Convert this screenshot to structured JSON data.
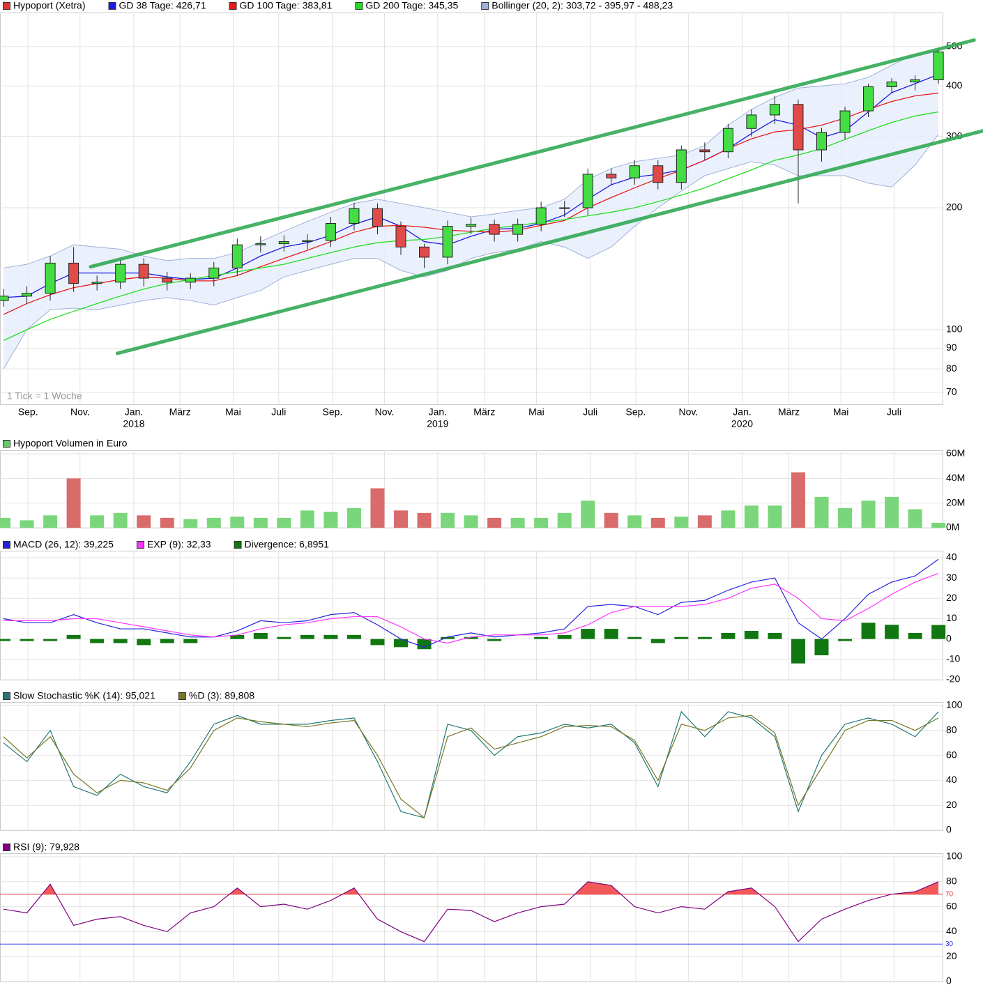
{
  "chart_data": [
    {
      "type": "candlestick",
      "name": "Hypoport (Xetra)",
      "color": "#e33333",
      "up_color": "#44dd44",
      "down_color": "#e24a4a",
      "x": [
        0,
        4,
        8,
        12,
        16,
        20,
        24,
        28,
        32,
        36,
        40,
        44,
        48,
        52,
        56,
        60,
        64,
        68,
        72,
        76,
        80,
        84,
        88,
        92,
        96,
        100,
        104,
        108,
        112,
        116,
        120,
        124,
        128,
        132,
        136,
        140,
        144,
        148,
        152,
        156,
        160
      ],
      "open": [
        118,
        121,
        123,
        146,
        130,
        131,
        145,
        134,
        131,
        134,
        142,
        162,
        163,
        165,
        166,
        183,
        199,
        180,
        160,
        151,
        180,
        182,
        172,
        182,
        200,
        200,
        242,
        237,
        254,
        231,
        278,
        275,
        314,
        339,
        360,
        278,
        307,
        347,
        398,
        409,
        414
      ],
      "high": [
        126,
        128,
        152,
        160,
        136,
        150,
        150,
        139,
        138,
        147,
        168,
        170,
        171,
        172,
        190,
        206,
        205,
        185,
        163,
        186,
        189,
        187,
        188,
        207,
        208,
        250,
        250,
        262,
        262,
        285,
        290,
        322,
        350,
        378,
        370,
        315,
        355,
        405,
        418,
        425,
        495
      ],
      "low": [
        114,
        116,
        118,
        124,
        125,
        126,
        128,
        125,
        126,
        128,
        136,
        155,
        156,
        158,
        160,
        176,
        172,
        153,
        142,
        145,
        172,
        165,
        165,
        175,
        190,
        192,
        228,
        228,
        222,
        222,
        262,
        265,
        300,
        322,
        205,
        260,
        295,
        335,
        385,
        390,
        405
      ],
      "close": [
        121,
        123,
        146,
        130,
        131,
        145,
        134,
        131,
        134,
        142,
        162,
        163,
        165,
        166,
        183,
        199,
        180,
        160,
        151,
        180,
        182,
        172,
        182,
        200,
        200,
        242,
        237,
        254,
        231,
        278,
        275,
        314,
        339,
        360,
        278,
        307,
        347,
        398,
        409,
        414,
        485
      ],
      "series": [
        {
          "name": "GD 38 Tage: 426,71",
          "color": "#1a1ae6",
          "values": [
            120,
            121,
            130,
            138,
            138,
            138,
            138,
            135,
            133,
            134,
            142,
            152,
            160,
            164,
            171,
            182,
            190,
            180,
            165,
            162,
            170,
            177,
            178,
            183,
            192,
            210,
            228,
            238,
            242,
            248,
            262,
            280,
            305,
            330,
            320,
            298,
            310,
            345,
            385,
            405,
            427
          ]
        },
        {
          "name": "GD 100 Tage: 383,81",
          "color": "#e61a1a",
          "values": [
            109,
            116,
            122,
            127,
            130,
            133,
            135,
            134,
            132,
            132,
            136,
            143,
            150,
            157,
            165,
            174,
            180,
            181,
            179,
            176,
            175,
            174,
            176,
            181,
            186,
            200,
            212,
            224,
            236,
            248,
            262,
            280,
            296,
            308,
            312,
            320,
            333,
            350,
            366,
            378,
            384
          ]
        },
        {
          "name": "GD 200 Tage: 345,35",
          "color": "#22dd22",
          "values": [
            94,
            100,
            106,
            111,
            116,
            121,
            126,
            130,
            133,
            136,
            139,
            142,
            145,
            150,
            155,
            160,
            164,
            166,
            167,
            170,
            174,
            178,
            181,
            184,
            187,
            191,
            195,
            200,
            207,
            215,
            224,
            236,
            248,
            262,
            270,
            280,
            295,
            310,
            325,
            337,
            345
          ]
        }
      ],
      "bands": {
        "name": "Bollinger (20, 2): 303,72 - 395,97 - 488,23",
        "color": "#9db0d8",
        "fill": "#e6eefb",
        "upper": [
          142,
          145,
          152,
          162,
          160,
          158,
          152,
          148,
          150,
          150,
          155,
          165,
          175,
          185,
          195,
          205,
          210,
          205,
          200,
          195,
          190,
          193,
          197,
          200,
          210,
          235,
          250,
          260,
          265,
          270,
          285,
          320,
          350,
          375,
          395,
          400,
          405,
          420,
          450,
          480,
          488
        ],
        "lower": [
          80,
          100,
          112,
          113,
          112,
          115,
          118,
          120,
          118,
          115,
          120,
          125,
          135,
          140,
          145,
          150,
          150,
          140,
          135,
          140,
          150,
          155,
          158,
          165,
          160,
          150,
          160,
          180,
          200,
          220,
          240,
          250,
          260,
          255,
          240,
          240,
          240,
          230,
          225,
          255,
          304
        ]
      },
      "trendlines": [
        {
          "x": [
            14.9,
            166.1
          ],
          "y": [
            143,
            519
          ]
        },
        {
          "x": [
            19.5,
            167.7
          ],
          "y": [
            87.4,
            310
          ]
        }
      ],
      "trend_color": "#33aa55",
      "log": true,
      "ylim": [
        65.4,
        607
      ],
      "yticks": [
        70,
        80,
        90,
        100,
        200,
        300,
        400,
        500
      ],
      "xlim": [
        -0.6,
        160.7
      ],
      "xticks": [
        {
          "value": 4.2,
          "label": "Sep."
        },
        {
          "value": 13.1,
          "label": "Nov."
        },
        {
          "value": 22.3,
          "label": "Jan."
        },
        {
          "value": 30.2,
          "label": "März"
        },
        {
          "value": 39.3,
          "label": "Mai"
        },
        {
          "value": 47.1,
          "label": "Juli"
        },
        {
          "value": 56.3,
          "label": "Sep."
        },
        {
          "value": 65.2,
          "label": "Nov."
        },
        {
          "value": 74.3,
          "label": "Jan."
        },
        {
          "value": 82.3,
          "label": "März"
        },
        {
          "value": 91.2,
          "label": "Mai"
        },
        {
          "value": 100.4,
          "label": "Juli"
        },
        {
          "value": 108.2,
          "label": "Sep."
        },
        {
          "value": 117.2,
          "label": "Nov."
        },
        {
          "value": 126.4,
          "label": "Jan."
        },
        {
          "value": 134.4,
          "label": "März"
        },
        {
          "value": 143.3,
          "label": "Mai"
        },
        {
          "value": 152.4,
          "label": "Juli"
        }
      ],
      "year_labels": [
        {
          "value": 22.3,
          "label": "2018"
        },
        {
          "value": 74.3,
          "label": "2019"
        },
        {
          "value": 126.4,
          "label": "2020"
        }
      ],
      "note": "1 Tick = 1 Woche",
      "grid": true
    },
    {
      "type": "bar",
      "name": "Hypoport Volumen in Euro",
      "color": "#66cc66",
      "up_color": "#7ad67a",
      "down_color": "#d96b6b",
      "x": [
        0,
        4,
        8,
        12,
        16,
        20,
        24,
        28,
        32,
        36,
        40,
        44,
        48,
        52,
        56,
        60,
        64,
        68,
        72,
        76,
        80,
        84,
        88,
        92,
        96,
        100,
        104,
        108,
        112,
        116,
        120,
        124,
        128,
        132,
        136,
        140,
        144,
        148,
        152,
        156,
        160
      ],
      "values": [
        8000000,
        6000000,
        10000000,
        40000000,
        10000000,
        12000000,
        10000000,
        8000000,
        7000000,
        8000000,
        9000000,
        8000000,
        8000000,
        14000000,
        13000000,
        16000000,
        32000000,
        14000000,
        12000000,
        12000000,
        10000000,
        8000000,
        8000000,
        8000000,
        12000000,
        22000000,
        12000000,
        10000000,
        8000000,
        9000000,
        10000000,
        14000000,
        18000000,
        18000000,
        45000000,
        25000000,
        16000000,
        22000000,
        25000000,
        15000000,
        4000000
      ],
      "ylim": [
        0,
        60000000
      ],
      "yticks": [
        {
          "value": 0,
          "label": "0M"
        },
        {
          "value": 20000000,
          "label": "20M"
        },
        {
          "value": 40000000,
          "label": "40M"
        },
        {
          "value": 60000000,
          "label": "60M"
        }
      ],
      "grid": true
    },
    {
      "type": "combo",
      "x": [
        0,
        4,
        8,
        12,
        16,
        20,
        24,
        28,
        32,
        36,
        40,
        44,
        48,
        52,
        56,
        60,
        64,
        68,
        72,
        76,
        80,
        84,
        88,
        92,
        96,
        100,
        104,
        108,
        112,
        116,
        120,
        124,
        128,
        132,
        136,
        140,
        144,
        148,
        152,
        156,
        160
      ],
      "series": [
        {
          "name": "MACD (26, 12): 39,225",
          "color": "#2222dd",
          "kind": "line",
          "values": [
            10,
            8,
            8,
            12,
            8,
            5,
            5,
            3,
            1,
            1,
            4,
            9,
            8,
            9,
            12,
            13,
            7,
            0,
            -4,
            1,
            3,
            1,
            2,
            3,
            5,
            16,
            17,
            16,
            12,
            18,
            19,
            24,
            28,
            30,
            8,
            0,
            10,
            22,
            28,
            31,
            39.2
          ]
        },
        {
          "name": "EXP (9): 32,33",
          "color": "#ff33ff",
          "kind": "line",
          "values": [
            9,
            9,
            9,
            10,
            10,
            8,
            6,
            4,
            2,
            1,
            2,
            5,
            7,
            8,
            10,
            11,
            11,
            6,
            0,
            -2,
            1,
            2,
            2,
            2,
            3,
            7,
            13,
            16,
            16,
            16,
            17,
            20,
            25,
            27,
            20,
            10,
            9,
            15,
            22,
            28,
            32.3
          ]
        },
        {
          "name": "Divergence: 6,8951",
          "color": "#117711",
          "kind": "bar",
          "values": [
            -1,
            -1,
            -1,
            2,
            -2,
            -2,
            -3,
            -2,
            -2,
            0,
            2,
            3,
            1,
            2,
            2,
            2,
            -3,
            -4,
            -5,
            1,
            1,
            -1,
            0,
            1,
            2,
            5,
            5,
            1,
            -2,
            1,
            1,
            3,
            4,
            3,
            -12,
            -8,
            -1,
            8,
            7,
            3,
            6.9
          ]
        }
      ],
      "ylim": [
        -20,
        41.7
      ],
      "yticks": [
        -20,
        -10,
        0,
        10,
        20,
        30,
        40
      ],
      "grid": true
    },
    {
      "type": "line",
      "x": [
        0,
        4,
        8,
        12,
        16,
        20,
        24,
        28,
        32,
        36,
        40,
        44,
        48,
        52,
        56,
        60,
        64,
        68,
        72,
        76,
        80,
        84,
        88,
        92,
        96,
        100,
        104,
        108,
        112,
        116,
        120,
        124,
        128,
        132,
        136,
        140,
        144,
        148,
        152,
        156,
        160
      ],
      "series": [
        {
          "name": "Slow Stochastic %K (14): 95,021",
          "color": "#227777",
          "values": [
            70,
            55,
            80,
            35,
            28,
            45,
            35,
            30,
            55,
            85,
            92,
            85,
            85,
            85,
            88,
            90,
            55,
            15,
            10,
            85,
            80,
            60,
            75,
            78,
            85,
            82,
            85,
            70,
            35,
            95,
            75,
            95,
            90,
            75,
            15,
            60,
            85,
            90,
            85,
            75,
            95
          ]
        },
        {
          "name": "%D (3): 89,808",
          "color": "#777722",
          "values": [
            75,
            58,
            75,
            45,
            30,
            40,
            38,
            32,
            50,
            80,
            90,
            87,
            85,
            83,
            86,
            88,
            60,
            25,
            10,
            75,
            82,
            65,
            70,
            75,
            83,
            84,
            83,
            72,
            40,
            85,
            80,
            90,
            92,
            78,
            20,
            50,
            80,
            88,
            88,
            80,
            90
          ]
        }
      ],
      "ylim": [
        0,
        100
      ],
      "yticks": [
        0,
        20,
        40,
        60,
        80,
        100
      ],
      "grid": true
    },
    {
      "type": "rsi",
      "x": [
        0,
        4,
        8,
        12,
        16,
        20,
        24,
        28,
        32,
        36,
        40,
        44,
        48,
        52,
        56,
        60,
        64,
        68,
        72,
        76,
        80,
        84,
        88,
        92,
        96,
        100,
        104,
        108,
        112,
        116,
        120,
        124,
        128,
        132,
        136,
        140,
        144,
        148,
        152,
        156,
        160
      ],
      "series": [
        {
          "name": "RSI (9): 79,928",
          "color": "#800080",
          "values": [
            58,
            55,
            78,
            45,
            50,
            52,
            45,
            40,
            55,
            60,
            75,
            60,
            62,
            58,
            65,
            75,
            50,
            40,
            32,
            58,
            57,
            48,
            55,
            60,
            62,
            80,
            77,
            60,
            55,
            60,
            58,
            72,
            75,
            60,
            32,
            50,
            58,
            65,
            70,
            72,
            80
          ]
        }
      ],
      "levels": [
        {
          "value": 70,
          "color": "#e33333"
        },
        {
          "value": 30,
          "color": "#3333e3"
        }
      ],
      "fill_color": "#f25a5a",
      "ylim": [
        0,
        100
      ],
      "yticks": [
        0,
        20,
        40,
        60,
        80,
        100
      ],
      "grid": true
    }
  ]
}
